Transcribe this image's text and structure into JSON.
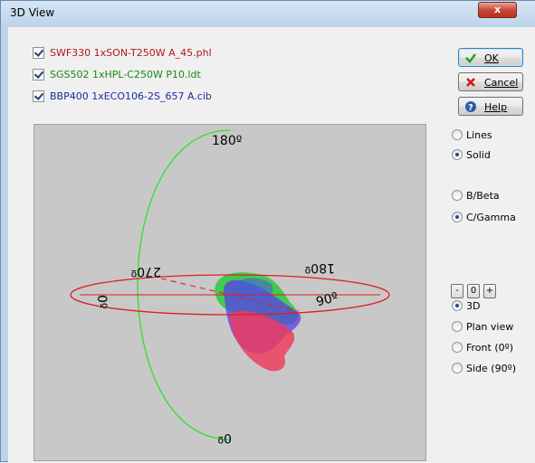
{
  "window": {
    "title": "3D View",
    "close_glyph": "x"
  },
  "files": [
    {
      "name": "SWF330 1xSON-T250W A_45.phl",
      "color": "#b01818",
      "checked": true
    },
    {
      "name": "SGS502 1xHPL-C250W P10.ldt",
      "color": "#148a14",
      "checked": true
    },
    {
      "name": "BBP400 1xECO106-2S_657 A.cib",
      "color": "#1a2aa0",
      "checked": true
    }
  ],
  "buttons": {
    "ok": "OK",
    "cancel": "Cancel",
    "help": "Help"
  },
  "render_mode": {
    "options": [
      "Lines",
      "Solid"
    ],
    "selected": "Solid"
  },
  "angle_system": {
    "options": [
      "B/Beta",
      "C/Gamma"
    ],
    "selected": "C/Gamma"
  },
  "stepper": {
    "minus": "-",
    "value": "0",
    "plus": "+"
  },
  "view": {
    "options": [
      "3D",
      "Plan view",
      "Front (0º)",
      "Side (90º)"
    ],
    "selected": "3D"
  },
  "plot_labels": {
    "top": "180º",
    "bottom": "0º",
    "left_c": "0º",
    "right_c": "90º",
    "back_left": "270º",
    "back_right": "180º"
  },
  "colors": {
    "c_plane": "#dd2020",
    "gamma_arc": "#2ee02e"
  }
}
